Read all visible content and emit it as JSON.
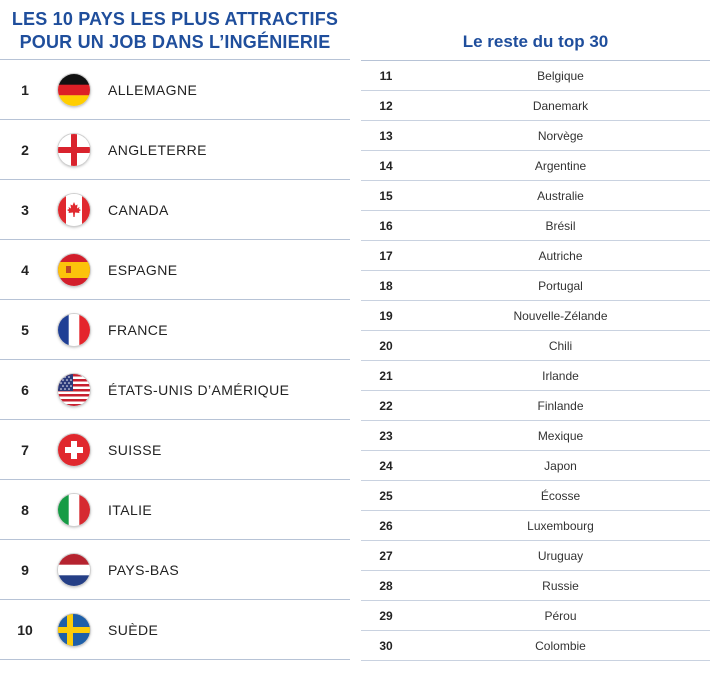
{
  "left": {
    "title_line1": "LES 10 PAYS LES PLUS ATTRACTIFS",
    "title_line2": "POUR UN JOB DANS L’INGÉNIERIE",
    "rows": [
      {
        "rank": "1",
        "country": "ALLEMAGNE",
        "flag": "germany-flag-icon"
      },
      {
        "rank": "2",
        "country": "ANGLETERRE",
        "flag": "england-flag-icon"
      },
      {
        "rank": "3",
        "country": "CANADA",
        "flag": "canada-flag-icon"
      },
      {
        "rank": "4",
        "country": "ESPAGNE",
        "flag": "spain-flag-icon"
      },
      {
        "rank": "5",
        "country": "FRANCE",
        "flag": "france-flag-icon"
      },
      {
        "rank": "6",
        "country": "ÉTATS-UNIS D’AMÉRIQUE",
        "flag": "usa-flag-icon"
      },
      {
        "rank": "7",
        "country": "SUISSE",
        "flag": "switzerland-flag-icon"
      },
      {
        "rank": "8",
        "country": "ITALIE",
        "flag": "italy-flag-icon"
      },
      {
        "rank": "9",
        "country": "PAYS-BAS",
        "flag": "netherlands-flag-icon"
      },
      {
        "rank": "10",
        "country": "SUÈDE",
        "flag": "sweden-flag-icon"
      }
    ]
  },
  "right": {
    "title": "Le reste du top 30",
    "rows": [
      {
        "rank": "11",
        "country": "Belgique"
      },
      {
        "rank": "12",
        "country": "Danemark"
      },
      {
        "rank": "13",
        "country": "Norvège"
      },
      {
        "rank": "14",
        "country": "Argentine"
      },
      {
        "rank": "15",
        "country": "Australie"
      },
      {
        "rank": "16",
        "country": "Brésil"
      },
      {
        "rank": "17",
        "country": "Autriche"
      },
      {
        "rank": "18",
        "country": "Portugal"
      },
      {
        "rank": "19",
        "country": "Nouvelle-Zélande"
      },
      {
        "rank": "20",
        "country": "Chili"
      },
      {
        "rank": "21",
        "country": "Irlande"
      },
      {
        "rank": "22",
        "country": "Finlande"
      },
      {
        "rank": "23",
        "country": "Mexique"
      },
      {
        "rank": "24",
        "country": "Japon"
      },
      {
        "rank": "25",
        "country": "Écosse"
      },
      {
        "rank": "26",
        "country": "Luxembourg"
      },
      {
        "rank": "27",
        "country": "Uruguay"
      },
      {
        "rank": "28",
        "country": "Russie"
      },
      {
        "rank": "29",
        "country": "Pérou"
      },
      {
        "rank": "30",
        "country": "Colombie"
      }
    ]
  },
  "colors": {
    "title_blue": "#1f4e9c",
    "rule": "#b7c3d6"
  }
}
